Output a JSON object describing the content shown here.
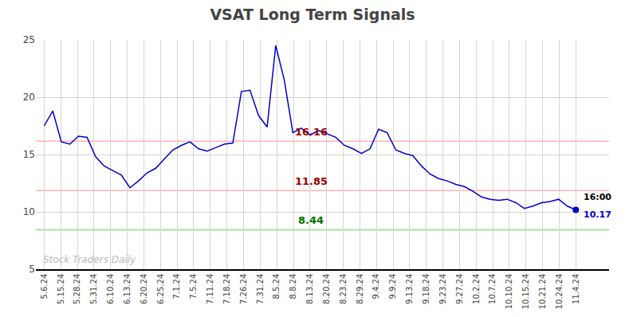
{
  "chart_data": {
    "type": "line",
    "title": "VSAT Long Term Signals",
    "color": "#0000cc",
    "background_color": "#ffffff",
    "x": [
      0,
      0.516129,
      1.032258,
      1.548387,
      2.064516,
      2.580645,
      3.096774,
      3.612903,
      4.129032,
      4.645161,
      5.16129,
      5.677419,
      6.193548,
      6.709677,
      7.225806,
      7.741935,
      8.258065,
      8.774194,
      9.290323,
      9.806452,
      10.322581,
      10.83871,
      11.354839,
      11.870968,
      12.387097,
      12.903226,
      13.419355,
      13.935484,
      14.451613,
      14.967742,
      15.483871,
      16,
      16.516129,
      17.032258,
      17.548387,
      18.064516,
      18.580645,
      19.096774,
      19.612903,
      20.129032,
      20.645161,
      21.16129,
      21.677419,
      22.193548,
      22.709677,
      23.225806,
      23.741935,
      24.258065,
      24.774194,
      25.290323,
      25.806452,
      26.322581,
      26.83871,
      27.354839,
      27.870968,
      28.387097,
      28.903226,
      29.419355,
      29.935484,
      30.451613,
      30.967742,
      31.483871,
      32
    ],
    "values": [
      17.5,
      18.8,
      16.1,
      15.9,
      16.6,
      16.5,
      14.8,
      14.0,
      13.6,
      13.2,
      12.1,
      12.7,
      13.4,
      13.8,
      14.6,
      15.4,
      15.8,
      16.1,
      15.5,
      15.3,
      15.6,
      15.9,
      16.0,
      20.5,
      20.6,
      18.4,
      17.4,
      24.5,
      21.5,
      16.9,
      17.3,
      16.7,
      17.1,
      16.8,
      16.5,
      15.8,
      15.5,
      15.1,
      15.5,
      17.2,
      16.9,
      15.4,
      15.1,
      14.9,
      14.0,
      13.3,
      12.9,
      12.7,
      12.4,
      12.2,
      11.8,
      11.3,
      11.1,
      11.0,
      11.1,
      10.8,
      10.3,
      10.5,
      10.8,
      10.9,
      11.1,
      10.5,
      10.17
    ],
    "xlim": [
      -0.5,
      34
    ],
    "xticks": [
      {
        "value": 0,
        "label": "5.6.24"
      },
      {
        "value": 1,
        "label": "5.15.24"
      },
      {
        "value": 2,
        "label": "5.28.24"
      },
      {
        "value": 3,
        "label": "5.31.24"
      },
      {
        "value": 4,
        "label": "6.10.24"
      },
      {
        "value": 5,
        "label": "6.13.24"
      },
      {
        "value": 6,
        "label": "6.20.24"
      },
      {
        "value": 7,
        "label": "6.25.24"
      },
      {
        "value": 8,
        "label": "7.1.24"
      },
      {
        "value": 9,
        "label": "7.5.24"
      },
      {
        "value": 10,
        "label": "7.11.24"
      },
      {
        "value": 11,
        "label": "7.18.24"
      },
      {
        "value": 12,
        "label": "7.26.24"
      },
      {
        "value": 13,
        "label": "7.31.24"
      },
      {
        "value": 14,
        "label": "8.5.24"
      },
      {
        "value": 15,
        "label": "8.8.24"
      },
      {
        "value": 16,
        "label": "8.13.24"
      },
      {
        "value": 17,
        "label": "8.20.24"
      },
      {
        "value": 18,
        "label": "8.23.24"
      },
      {
        "value": 19,
        "label": "8.29.24"
      },
      {
        "value": 20,
        "label": "9.4.24"
      },
      {
        "value": 21,
        "label": "9.9.24"
      },
      {
        "value": 22,
        "label": "9.13.24"
      },
      {
        "value": 23,
        "label": "9.18.24"
      },
      {
        "value": 24,
        "label": "9.23.24"
      },
      {
        "value": 25,
        "label": "9.27.24"
      },
      {
        "value": 26,
        "label": "10.2.24"
      },
      {
        "value": 27,
        "label": "10.7.24"
      },
      {
        "value": 28,
        "label": "10.10.24"
      },
      {
        "value": 29,
        "label": "10.15.24"
      },
      {
        "value": 30,
        "label": "10.21.24"
      },
      {
        "value": 31,
        "label": "10.24.24"
      },
      {
        "value": 32,
        "label": "11.4.24"
      }
    ],
    "ylim": [
      5,
      25
    ],
    "yticks": [
      5,
      10,
      15,
      20,
      25
    ],
    "grid": true,
    "grid_color": "#d5d5d5",
    "hlines": [
      {
        "value": 16.16,
        "label": "16.16",
        "color": "#ffb3b3",
        "label_color": "#990000"
      },
      {
        "value": 11.85,
        "label": "11.85",
        "color": "#ffb3b3",
        "label_color": "#990000"
      },
      {
        "value": 8.44,
        "label": "8.44",
        "color": "#88dd88",
        "label_color": "#007700"
      }
    ],
    "end_point": {
      "color": "#0000cc",
      "time_label": "16:00",
      "price_label": "10.17"
    },
    "watermark": {
      "text": "Stock Traders Daily",
      "color": "#bbbbbb"
    }
  }
}
